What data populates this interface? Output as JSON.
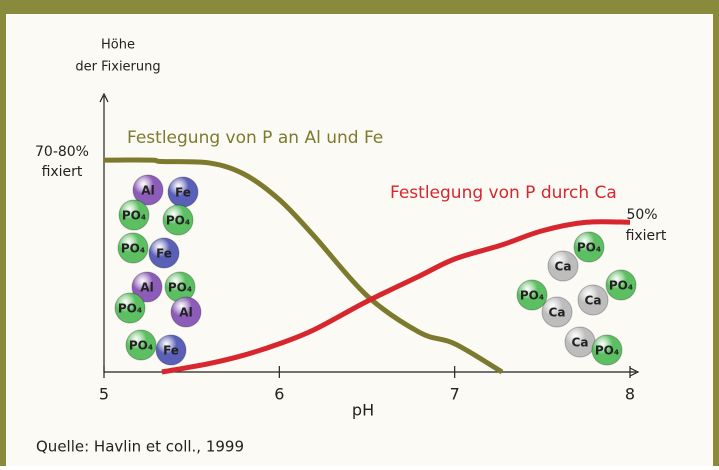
{
  "chart_data": {
    "type": "line",
    "y_label": [
      "Höhe",
      "der Fixierung"
    ],
    "x_label": "pH",
    "source": "Quelle: Havlin et coll., 1999",
    "x": [
      5.0,
      5.27,
      5.33,
      5.6,
      5.8,
      6.0,
      6.2,
      6.5,
      6.8,
      7.0,
      7.27,
      7.5,
      7.75,
      8.0
    ],
    "series": [
      {
        "name": "Festlegung von P an Al und Fe",
        "color": "#7d7a2e",
        "values": [
          75,
          75,
          74.5,
          74,
          70,
          61,
          48,
          27,
          14,
          10,
          0,
          null,
          null,
          null
        ]
      },
      {
        "name": "Festlegung von P durch Ca",
        "color": "#d7262e",
        "values": [
          null,
          null,
          0,
          3,
          6,
          10,
          15,
          25,
          34,
          40,
          45,
          50,
          53,
          53
        ]
      }
    ],
    "xlim": [
      5,
      8
    ],
    "xticks": [
      5,
      6,
      7,
      8
    ],
    "ylim": [
      0,
      80
    ],
    "annotations": [
      {
        "lines": [
          "70-80%",
          "fixiert"
        ]
      },
      {
        "lines": [
          "50%",
          "fixiert"
        ]
      }
    ],
    "molecules": [
      {
        "label": "Al",
        "color": "#8d5cb8"
      },
      {
        "label": "Fe",
        "color": "#5a5fb8"
      },
      {
        "label": "PO₄",
        "color": "#5cbf62"
      },
      {
        "label": "PO₄",
        "color": "#5cbf62"
      },
      {
        "label": "PO₄",
        "color": "#5cbf62"
      },
      {
        "label": "Fe",
        "color": "#5a5fb8"
      },
      {
        "label": "Al",
        "color": "#8d5cb8"
      },
      {
        "label": "PO₄",
        "color": "#5cbf62"
      },
      {
        "label": "PO₄",
        "color": "#5cbf62"
      },
      {
        "label": "Al",
        "color": "#8d5cb8"
      },
      {
        "label": "PO₄",
        "color": "#5cbf62"
      },
      {
        "label": "Fe",
        "color": "#5a5fb8"
      },
      {
        "label": "PO₄",
        "color": "#5cbf62"
      },
      {
        "label": "Ca",
        "color": "#bdbdbd"
      },
      {
        "label": "PO₄",
        "color": "#5cbf62"
      },
      {
        "label": "PO₄",
        "color": "#5cbf62"
      },
      {
        "label": "Ca",
        "color": "#bdbdbd"
      },
      {
        "label": "Ca",
        "color": "#bdbdbd"
      },
      {
        "label": "Ca",
        "color": "#bdbdbd"
      },
      {
        "label": "PO₄",
        "color": "#5cbf62"
      }
    ]
  }
}
